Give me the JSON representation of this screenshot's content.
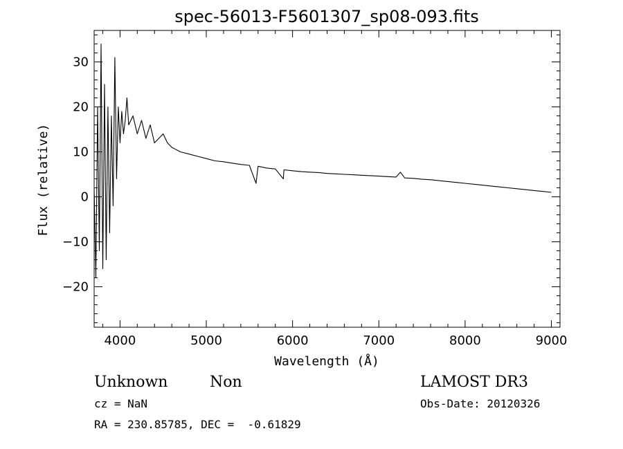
{
  "chart_data": {
    "type": "line",
    "title": "spec-56013-F5601307_sp08-093.fits",
    "xlabel": "Wavelength (Å)",
    "ylabel": "Flux (relative)",
    "xlim": [
      3700,
      9100
    ],
    "ylim": [
      -29,
      37
    ],
    "x_ticks": [
      4000,
      5000,
      6000,
      7000,
      8000,
      9000
    ],
    "y_ticks": [
      -20,
      -10,
      0,
      10,
      20,
      30
    ],
    "grid": false,
    "series": [
      {
        "x": [
          3700,
          3720,
          3740,
          3760,
          3780,
          3800,
          3820,
          3840,
          3860,
          3880,
          3900,
          3920,
          3940,
          3960,
          3980,
          4000,
          4020,
          4040,
          4060,
          4080,
          4100,
          4150,
          4200,
          4250,
          4300,
          4350,
          4400,
          4450,
          4500,
          4550,
          4600,
          4700,
          4800,
          4900,
          5000,
          5100,
          5200,
          5300,
          5400,
          5500,
          5577,
          5600,
          5700,
          5800,
          5893,
          5900,
          6000,
          6100,
          6200,
          6300,
          6400,
          6500,
          6600,
          6700,
          6800,
          6900,
          7000,
          7100,
          7200,
          7250,
          7300,
          7400,
          7500,
          7600,
          7700,
          7800,
          7900,
          8000,
          8100,
          8200,
          8300,
          8400,
          8500,
          8600,
          8700,
          8800,
          8900,
          9000
        ],
        "y": [
          2,
          -18,
          20,
          -12,
          34,
          -16,
          25,
          -14,
          20,
          -8,
          18,
          -2,
          31,
          4,
          20,
          12,
          19,
          14,
          17,
          22,
          16,
          18,
          14,
          17,
          13,
          16,
          12,
          13,
          14,
          12,
          11,
          10,
          9.5,
          9,
          8.5,
          8,
          7.8,
          7.5,
          7.2,
          7,
          3,
          6.8,
          6.4,
          6.2,
          4,
          6,
          5.8,
          5.6,
          5.5,
          5.4,
          5.2,
          5.1,
          5,
          4.9,
          4.8,
          4.7,
          4.6,
          4.5,
          4.4,
          5.5,
          4.2,
          4.1,
          3.9,
          3.8,
          3.6,
          3.4,
          3.2,
          3.0,
          2.8,
          2.6,
          2.4,
          2.2,
          2.0,
          1.8,
          1.6,
          1.4,
          1.2,
          1.0
        ]
      }
    ]
  },
  "annotations": {
    "class_label": "Unknown",
    "subclass_label": "Non",
    "survey": "LAMOST DR3",
    "redshift": "cz = NaN",
    "obs_date": "Obs-Date: 20120326",
    "coords": "RA = 230.85785, DEC =  -0.61829"
  }
}
